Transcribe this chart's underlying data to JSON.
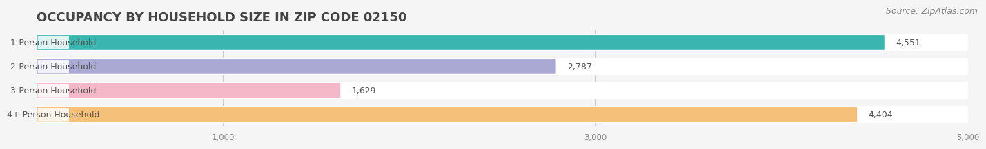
{
  "title": "OCCUPANCY BY HOUSEHOLD SIZE IN ZIP CODE 02150",
  "source": "Source: ZipAtlas.com",
  "categories": [
    "1-Person Household",
    "2-Person Household",
    "3-Person Household",
    "4+ Person Household"
  ],
  "values": [
    4551,
    2787,
    1629,
    4404
  ],
  "bar_colors": [
    "#3ab5b0",
    "#a9a9d4",
    "#f4b8c8",
    "#f5c07a"
  ],
  "background_color": "#f5f5f5",
  "bar_background_color": "#ffffff",
  "xlim": [
    0,
    5000
  ],
  "xticks": [
    1000,
    3000,
    5000
  ],
  "title_fontsize": 13,
  "label_fontsize": 9,
  "value_fontsize": 9,
  "source_fontsize": 9
}
